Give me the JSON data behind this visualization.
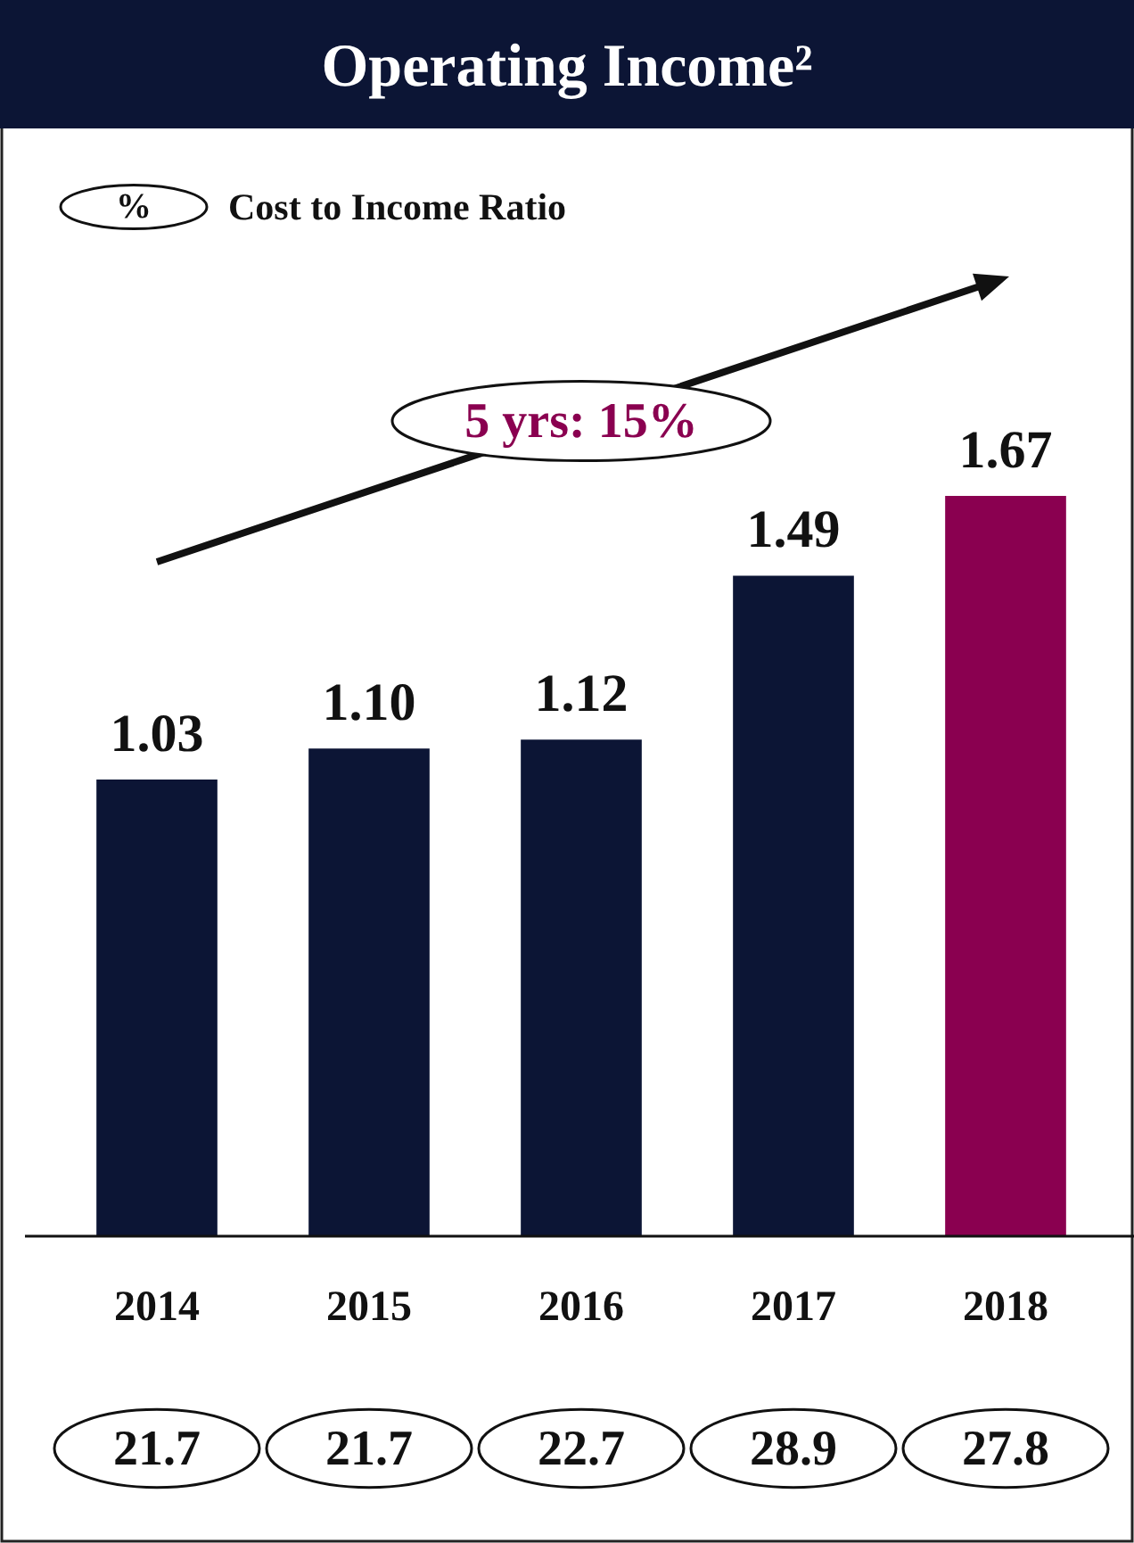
{
  "chart_data": {
    "type": "bar",
    "title": "Operating Income²",
    "categories": [
      "2014",
      "2015",
      "2016",
      "2017",
      "2018"
    ],
    "values": [
      1.03,
      1.1,
      1.12,
      1.49,
      1.67
    ],
    "colors": [
      "#0c1535",
      "#0c1535",
      "#0c1535",
      "#0c1535",
      "#8a0050"
    ],
    "value_labels": [
      "1.03",
      "1.10",
      "1.12",
      "1.49",
      "1.67"
    ],
    "annotations": [
      "%",
      "Cost to Income Ratio",
      "5 yrs: 15%",
      "21.7",
      "21.7",
      "22.7",
      "28.9",
      "27.8"
    ]
  }
}
